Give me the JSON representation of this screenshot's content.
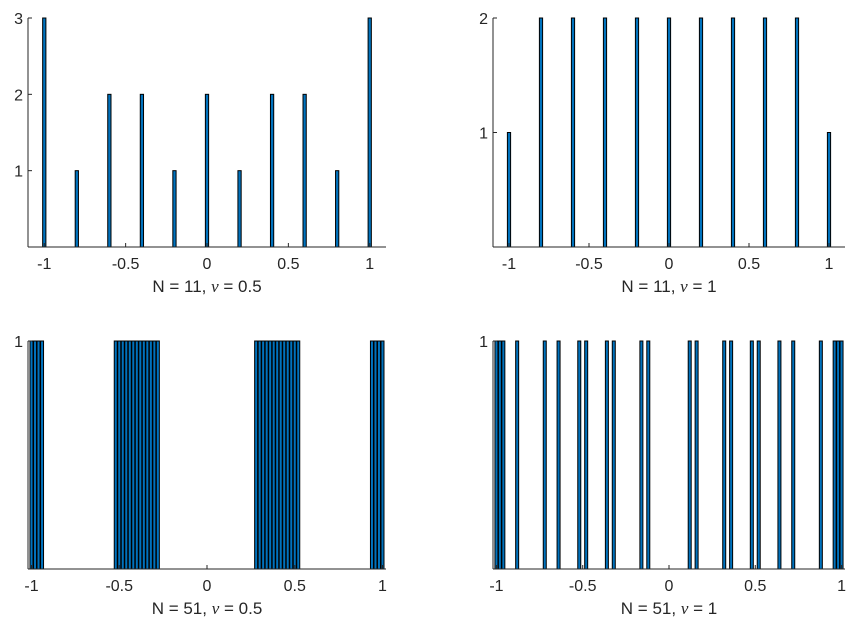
{
  "chart_data": [
    {
      "type": "bar",
      "id": "top-left",
      "xlabel_prefix": "N = 11, ",
      "xlabel_symbol": "ν",
      "xlabel_suffix": " = 0.5",
      "xlim": [
        -1.1,
        1.1
      ],
      "ylim": [
        0,
        3
      ],
      "xticks": [
        -1,
        -0.5,
        0,
        0.5,
        1
      ],
      "xtick_labels": [
        "-1",
        "-0.5",
        "0",
        "0.5",
        "1"
      ],
      "yticks": [
        1,
        2,
        3
      ],
      "ytick_labels": [
        "1",
        "2",
        "3"
      ],
      "x": [
        -1,
        -0.8,
        -0.6,
        -0.4,
        -0.2,
        0,
        0.2,
        0.4,
        0.6,
        0.8,
        1
      ],
      "values": [
        3,
        1,
        2,
        2,
        1,
        2,
        1,
        2,
        2,
        1,
        3
      ],
      "bar_width": 0.02,
      "color": "#0072bd"
    },
    {
      "type": "bar",
      "id": "top-right",
      "xlabel_prefix": "N = 11, ",
      "xlabel_symbol": "ν",
      "xlabel_suffix": " = 1",
      "xlim": [
        -1.1,
        1.1
      ],
      "ylim": [
        0,
        2
      ],
      "xticks": [
        -1,
        -0.5,
        0,
        0.5,
        1
      ],
      "xtick_labels": [
        "-1",
        "-0.5",
        "0",
        "0.5",
        "1"
      ],
      "yticks": [
        1,
        2
      ],
      "ytick_labels": [
        "1",
        "2"
      ],
      "x": [
        -1,
        -0.8,
        -0.6,
        -0.4,
        -0.2,
        0,
        0.2,
        0.4,
        0.6,
        0.8,
        1
      ],
      "values": [
        1,
        2,
        2,
        2,
        2,
        2,
        2,
        2,
        2,
        2,
        1
      ],
      "bar_width": 0.02,
      "color": "#0072bd"
    },
    {
      "type": "bar",
      "id": "bottom-left",
      "xlabel_prefix": "N = 51, ",
      "xlabel_symbol": "ν",
      "xlabel_suffix": " = 0.5",
      "xlim": [
        -1.02,
        1.02
      ],
      "ylim": [
        0,
        1
      ],
      "xticks": [
        -1,
        -0.5,
        0,
        0.5,
        1
      ],
      "xtick_labels": [
        "-1",
        "-0.5",
        "0",
        "0.5",
        "1"
      ],
      "yticks": [
        1
      ],
      "ytick_labels": [
        "1"
      ],
      "x": [
        -1,
        -0.98,
        -0.96,
        -0.94,
        -0.52,
        -0.5,
        -0.48,
        -0.46,
        -0.44,
        -0.42,
        -0.4,
        -0.38,
        -0.36,
        -0.34,
        -0.32,
        -0.3,
        -0.28,
        0.28,
        0.3,
        0.32,
        0.34,
        0.36,
        0.38,
        0.4,
        0.42,
        0.44,
        0.46,
        0.48,
        0.5,
        0.52,
        0.94,
        0.96,
        0.98,
        1
      ],
      "values": [
        1,
        1,
        1,
        1,
        1,
        1,
        1,
        1,
        1,
        1,
        1,
        1,
        1,
        1,
        1,
        1,
        1,
        1,
        1,
        1,
        1,
        1,
        1,
        1,
        1,
        1,
        1,
        1,
        1,
        1,
        1,
        1,
        1,
        1
      ],
      "bar_width": 0.005,
      "color": "#0072bd"
    },
    {
      "type": "bar",
      "id": "bottom-right",
      "xlabel_prefix": "N = 51, ",
      "xlabel_symbol": "ν",
      "xlabel_suffix": " = 1",
      "xlim": [
        -1.02,
        1.02
      ],
      "ylim": [
        0,
        1
      ],
      "xticks": [
        -1,
        -0.5,
        0,
        0.5,
        1
      ],
      "xtick_labels": [
        "-1",
        "-0.5",
        "0",
        "0.5",
        "1"
      ],
      "yticks": [
        1
      ],
      "ytick_labels": [
        "1"
      ],
      "x": [
        -1,
        -0.98,
        -0.96,
        -0.88,
        -0.72,
        -0.64,
        -0.52,
        -0.48,
        -0.36,
        -0.32,
        -0.16,
        -0.12,
        0.12,
        0.16,
        0.32,
        0.36,
        0.48,
        0.52,
        0.64,
        0.72,
        0.88,
        0.96,
        0.98,
        1
      ],
      "values": [
        1,
        1,
        1,
        1,
        1,
        1,
        1,
        1,
        1,
        1,
        1,
        1,
        1,
        1,
        1,
        1,
        1,
        1,
        1,
        1,
        1,
        1,
        1,
        1
      ],
      "bar_width": 0.005,
      "color": "#0072bd"
    }
  ]
}
